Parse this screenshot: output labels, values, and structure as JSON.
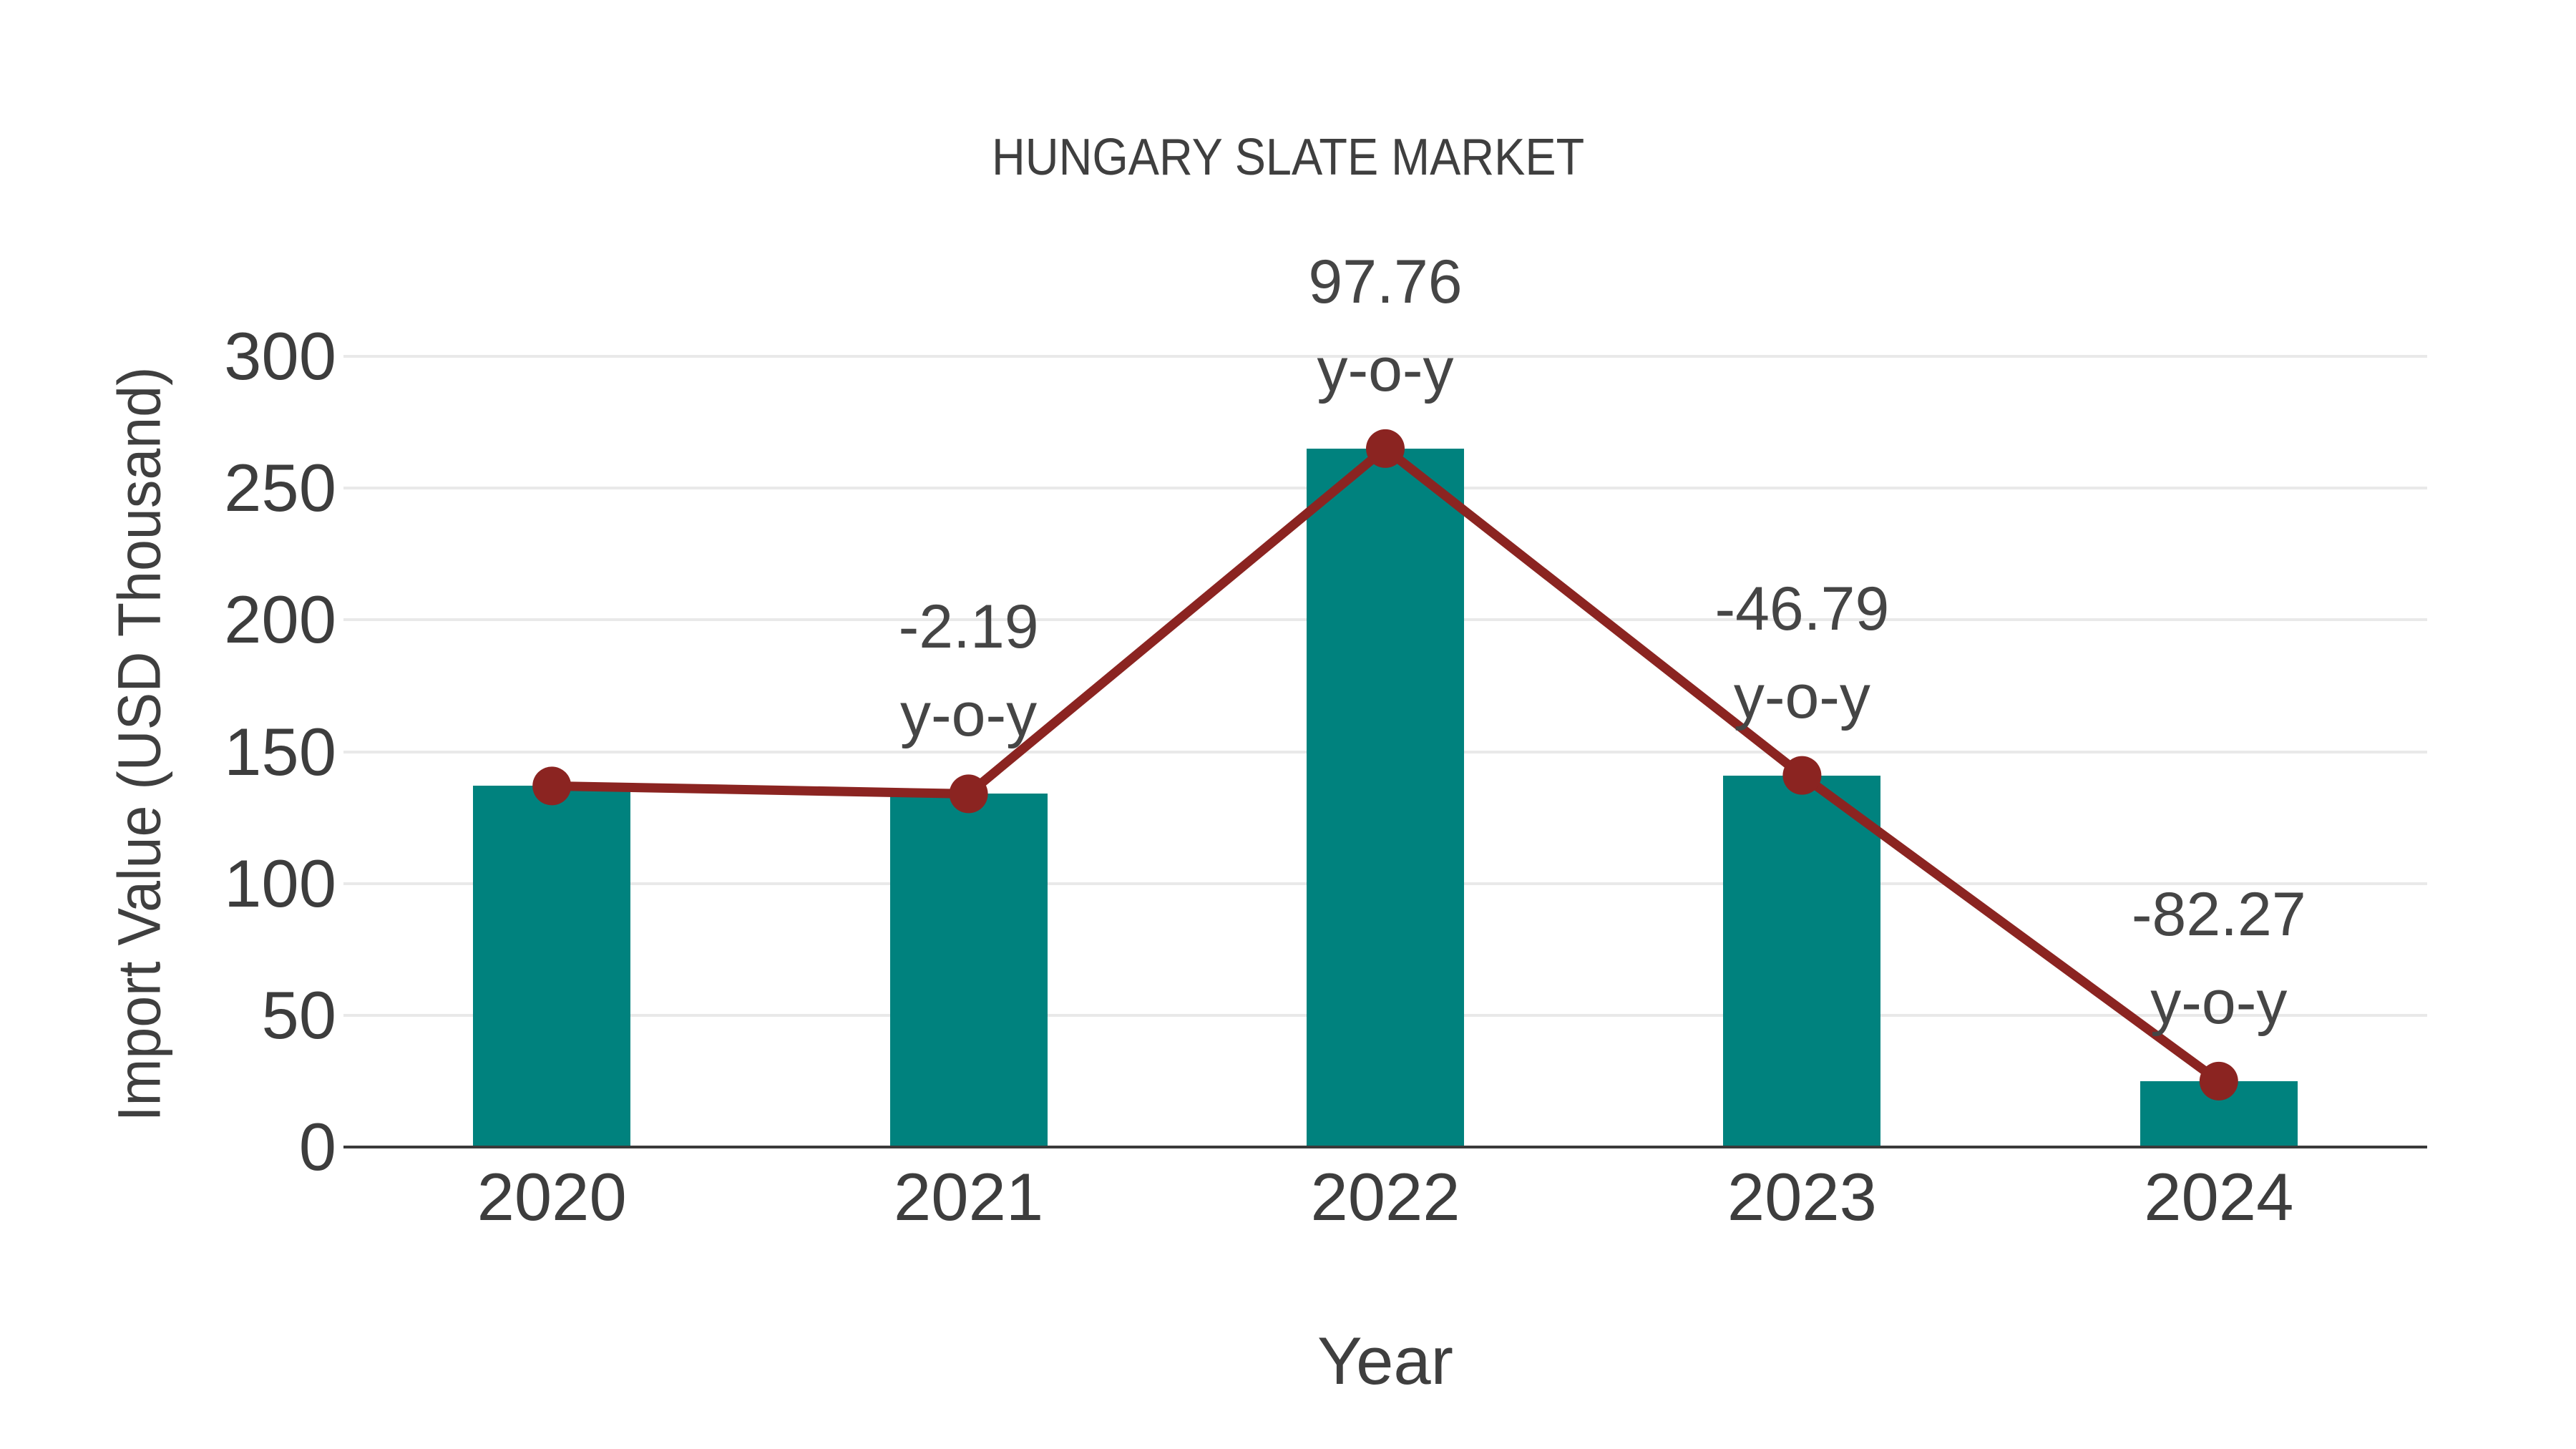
{
  "chart_data": {
    "type": "bar",
    "title": "HUNGARY SLATE MARKET",
    "xlabel": "Year",
    "ylabel": "Import Value (USD Thousand)",
    "categories": [
      "2020",
      "2021",
      "2022",
      "2023",
      "2024"
    ],
    "series": [
      {
        "name": "import-value-bars",
        "type": "bar",
        "values": [
          137,
          134,
          265,
          141,
          25
        ]
      },
      {
        "name": "yoy-trend-line",
        "type": "line",
        "values": [
          137,
          134,
          265,
          141,
          25
        ]
      }
    ],
    "annotations": [
      {
        "category": "2021",
        "line1": "-2.19",
        "line2": "y-o-y"
      },
      {
        "category": "2022",
        "line1": "97.76",
        "line2": "y-o-y"
      },
      {
        "category": "2023",
        "line1": "-46.79",
        "line2": "y-o-y"
      },
      {
        "category": "2024",
        "line1": "-82.27",
        "line2": "y-o-y"
      }
    ],
    "yticks": [
      0,
      50,
      100,
      150,
      200,
      250,
      300
    ],
    "ylim": [
      0,
      300
    ],
    "grid": true,
    "legend_position": "none",
    "colors": {
      "bar": "#00827e",
      "line": "#8b2421",
      "marker": "#8b2421",
      "text": "#3f3f3f",
      "grid": "#e9e9e9",
      "axis": "#3a3a3a",
      "background": "#ffffff"
    }
  }
}
